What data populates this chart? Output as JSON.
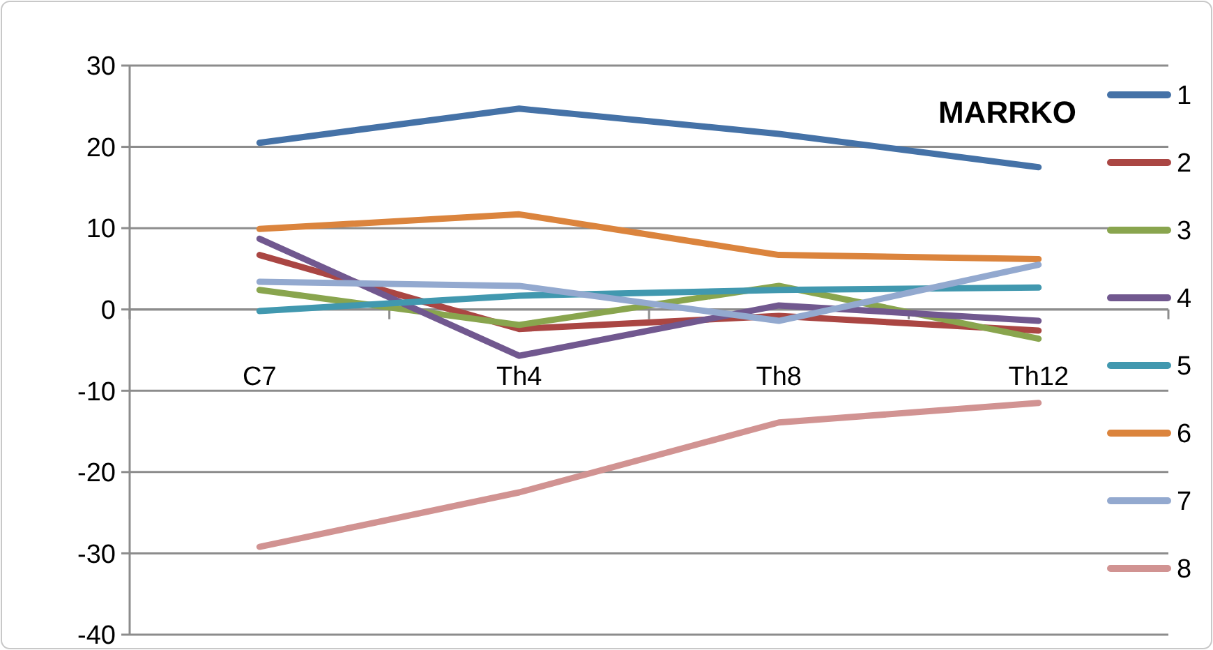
{
  "chart_data": {
    "type": "line",
    "title": "MARRKO",
    "categories": [
      "C7",
      "Th4",
      "Th8",
      "Th12"
    ],
    "series": [
      {
        "name": "1",
        "color": "#4572a7",
        "values": [
          20.5,
          24.7,
          21.6,
          17.5
        ]
      },
      {
        "name": "2",
        "color": "#aa4643",
        "values": [
          6.7,
          -2.4,
          -0.8,
          -2.6
        ]
      },
      {
        "name": "3",
        "color": "#89a54e",
        "values": [
          2.4,
          -1.9,
          2.9,
          -3.6
        ]
      },
      {
        "name": "4",
        "color": "#71588f",
        "values": [
          8.7,
          -5.7,
          0.5,
          -1.4
        ]
      },
      {
        "name": "5",
        "color": "#4198af",
        "values": [
          -0.2,
          1.7,
          2.4,
          2.7
        ]
      },
      {
        "name": "6",
        "color": "#db843d",
        "values": [
          9.9,
          11.7,
          6.7,
          6.2
        ]
      },
      {
        "name": "7",
        "color": "#93a9cf",
        "values": [
          3.4,
          2.9,
          -1.4,
          5.5
        ]
      },
      {
        "name": "8",
        "color": "#d19392",
        "values": [
          -29.2,
          -22.5,
          -13.9,
          -11.5
        ]
      }
    ],
    "ylim": [
      -40,
      30
    ],
    "yticks": [
      -40,
      -30,
      -20,
      -10,
      0,
      10,
      20,
      30
    ],
    "grid": "y",
    "legend": "right",
    "marker": "none",
    "line_style": "solid"
  }
}
